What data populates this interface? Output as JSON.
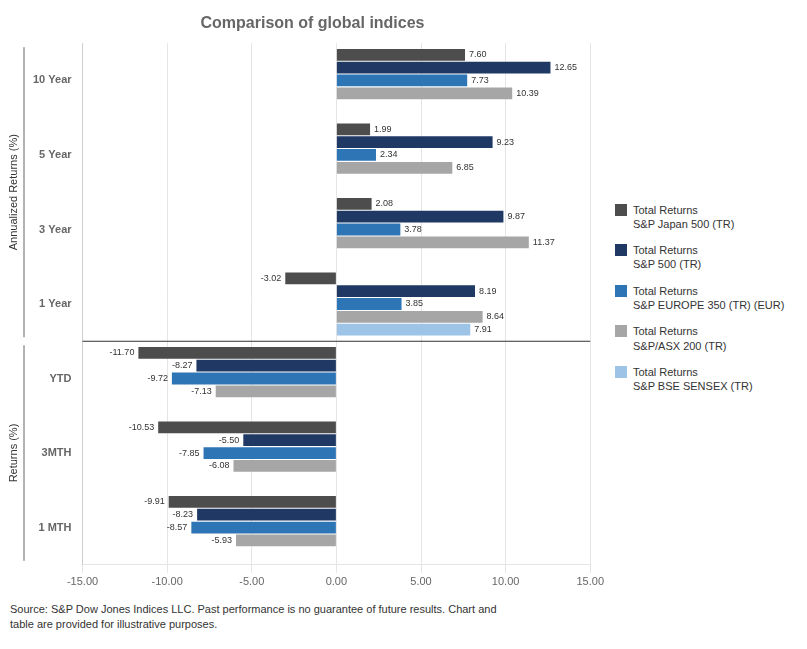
{
  "chart_data": {
    "type": "bar",
    "orientation": "horizontal",
    "title": "Comparison of global indices",
    "footnote": "Source: S&P Dow Jones Indices LLC. Past performance is no guarantee of future results. Chart and\ntable are provided for illustrative purposes.",
    "categories": [
      "10 Year",
      "5 Year",
      "3 Year",
      "1 Year",
      "YTD",
      "3MTH",
      "1 MTH"
    ],
    "series": [
      {
        "name": "Total Returns\nS&P Japan 500 (TR)",
        "color": "#4d4d4d",
        "values": [
          7.6,
          1.99,
          2.08,
          -3.02,
          -11.7,
          -10.53,
          -9.91
        ],
        "value_labels": [
          "7.60",
          "1.99",
          "2.08",
          "-3.02",
          "-11.70",
          "-10.53",
          "-9.91"
        ]
      },
      {
        "name": "Total Returns\nS&P 500 (TR)",
        "color": "#1f3864",
        "values": [
          12.65,
          9.23,
          9.87,
          8.19,
          -8.27,
          -5.5,
          -8.23
        ],
        "value_labels": [
          "12.65",
          "9.23",
          "9.87",
          "8.19",
          "-8.27",
          "-5.50",
          "-8.23"
        ]
      },
      {
        "name": "Total Returns\nS&P EUROPE 350 (TR) (EUR)",
        "color": "#2e75b6",
        "values": [
          7.73,
          2.34,
          3.78,
          3.85,
          -9.72,
          -7.85,
          -8.57
        ],
        "value_labels": [
          "7.73",
          "2.34",
          "3.78",
          "3.85",
          "-9.72",
          "-7.85",
          "-8.57"
        ]
      },
      {
        "name": "Total Returns\nS&P/ASX 200 (TR)",
        "color": "#a6a6a6",
        "values": [
          10.39,
          6.85,
          11.37,
          8.64,
          -7.13,
          -6.08,
          -5.93
        ],
        "value_labels": [
          "10.39",
          "6.85",
          "11.37",
          "8.64",
          "-7.13",
          "-6.08",
          "-5.93"
        ]
      },
      {
        "name": "Total Returns\nS&P BSE SENSEX (TR)",
        "color": "#9dc3e6",
        "values": [
          null,
          null,
          null,
          7.91,
          null,
          null,
          null
        ],
        "value_labels": [
          null,
          null,
          null,
          "7.91",
          null,
          null,
          null
        ]
      }
    ],
    "annotations": [
      {
        "text": "Annualized Returns (%)",
        "categories": [
          "10 Year",
          "5 Year",
          "3 Year",
          "1 Year"
        ]
      },
      {
        "text": "Returns (%)",
        "categories": [
          "YTD",
          "3MTH",
          "1 MTH"
        ]
      }
    ],
    "xlim": [
      -15,
      15
    ],
    "xticks": [
      {
        "value": -15,
        "label": "-15.00"
      },
      {
        "value": -10,
        "label": "-10.00"
      },
      {
        "value": -5,
        "label": "-5.00"
      },
      {
        "value": 0,
        "label": "0.00"
      },
      {
        "value": 5,
        "label": "5.00"
      },
      {
        "value": 10,
        "label": "10.00"
      },
      {
        "value": 15,
        "label": "15.00"
      }
    ],
    "grid": true,
    "legend": "right",
    "data_labels": true
  }
}
